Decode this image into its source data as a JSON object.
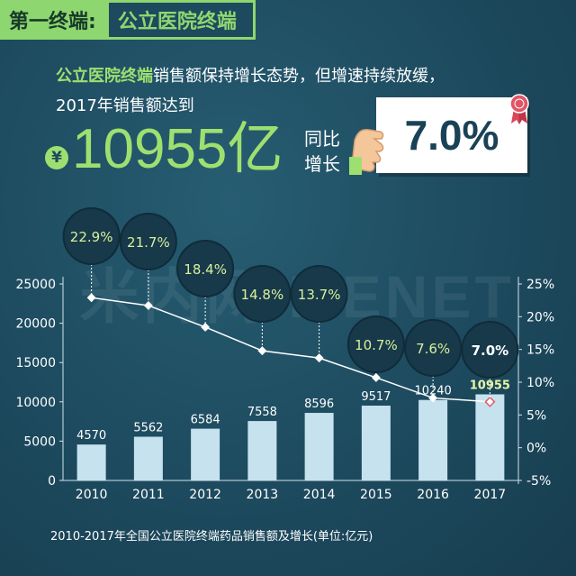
{
  "header": {
    "tag": "第一终端:",
    "title": "公立医院终端"
  },
  "intro": {
    "highlight": "公立医院终端",
    "rest": "销售额保持增长态势，但增速持续放缓，",
    "line2": "2017年销售额达到"
  },
  "headline": {
    "currency_symbol": "¥",
    "value": "10955亿",
    "growth_label": "同比增长",
    "growth_value": "7.0%"
  },
  "colors": {
    "background": "#1d4a5e",
    "accent": "#9ee070",
    "bar": "#c5e2ee",
    "line": "#ffffff",
    "bubble": "#17394a"
  },
  "chart_data": {
    "type": "bar",
    "categories": [
      "2010",
      "2011",
      "2012",
      "2013",
      "2014",
      "2015",
      "2016",
      "2017"
    ],
    "series": [
      {
        "name": "",
        "type": "bar",
        "values": [
          4570,
          5562,
          6584,
          7558,
          8596,
          9517,
          10240,
          10955
        ]
      },
      {
        "name": "",
        "type": "line",
        "axis": "right",
        "values": [
          22.9,
          21.7,
          18.4,
          14.8,
          13.7,
          10.7,
          7.6,
          7.0
        ]
      }
    ],
    "bar_labels": [
      "4570",
      "5562",
      "6584",
      "7558",
      "8596",
      "9517",
      "10240",
      "10955"
    ],
    "bubble_labels": [
      "22.9%",
      "21.7%",
      "18.4%",
      "14.8%",
      "13.7%",
      "10.7%",
      "7.6%",
      "7.0%"
    ],
    "ylim": [
      0,
      25000
    ],
    "yticks": [
      "0",
      "5000",
      "10000",
      "15000",
      "20000",
      "25000"
    ],
    "y2lim": [
      -5,
      25
    ],
    "y2ticks": [
      "-5%",
      "0%",
      "5%",
      "10%",
      "15%",
      "20%",
      "25%"
    ],
    "caption": "2010-2017年全国公立医院终端药品销售额及增长(单位:亿元)",
    "watermark": "米内网 MENET"
  }
}
